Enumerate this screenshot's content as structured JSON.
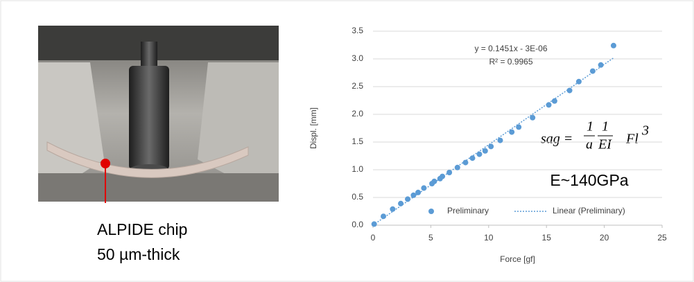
{
  "photo": {
    "caption_line1": "ALPIDE chip",
    "caption_line2": "50 µm-thick"
  },
  "formula": {
    "lhs": "sag =",
    "n1": "1",
    "d1": "a",
    "n2": "1",
    "d2": "EI",
    "rhs": "Fl",
    "exp": "3"
  },
  "modulus_note": "E~140GPa",
  "chart_data": {
    "type": "scatter",
    "x_label": "Force [gf]",
    "y_label": "Displ. [mm]",
    "x": [
      0.1,
      0.9,
      1.7,
      2.4,
      3.0,
      3.5,
      3.9,
      4.4,
      5.1,
      5.3,
      5.8,
      6.0,
      6.6,
      7.3,
      8.0,
      8.6,
      9.2,
      9.7,
      10.2,
      11.0,
      12.0,
      12.6,
      13.8,
      15.2,
      15.7,
      17.0,
      17.8,
      19.0,
      19.7,
      20.8
    ],
    "series": [
      {
        "name": "Preliminary",
        "color": "#5b9bd5",
        "values": [
          0.02,
          0.16,
          0.29,
          0.39,
          0.47,
          0.54,
          0.59,
          0.67,
          0.75,
          0.79,
          0.84,
          0.88,
          0.95,
          1.04,
          1.13,
          1.21,
          1.28,
          1.34,
          1.42,
          1.53,
          1.68,
          1.77,
          1.94,
          2.17,
          2.24,
          2.43,
          2.59,
          2.78,
          2.89,
          3.24
        ]
      }
    ],
    "trendline": {
      "name": "Linear (Preliminary)",
      "equation": "y = 0.1451x - 3E-06",
      "r2_label": "R² = 0.9965",
      "slope": 0.1451,
      "intercept": -3e-06
    },
    "xlim": [
      0,
      25
    ],
    "xticks": [
      0,
      5,
      10,
      15,
      20,
      25
    ],
    "ylim": [
      0,
      3.5
    ],
    "yticks": [
      {
        "value": 0,
        "label": "0.0"
      },
      0.5,
      {
        "value": 1,
        "label": "1.0"
      },
      1.5,
      {
        "value": 2,
        "label": "2.0"
      },
      2.5,
      {
        "value": 3,
        "label": "3.0"
      },
      3.5
    ],
    "grid": true,
    "legend": "bottom"
  }
}
